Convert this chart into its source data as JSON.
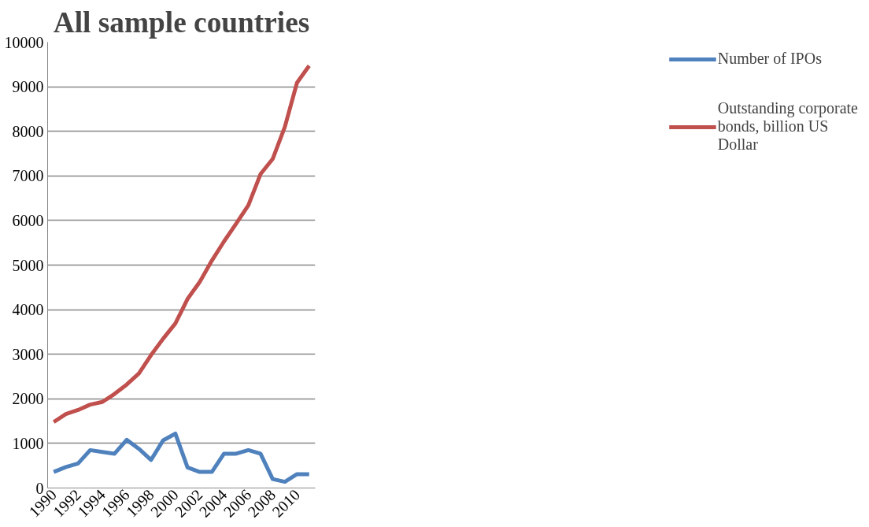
{
  "chart_data": {
    "type": "line",
    "title": "All sample countries",
    "categories": [
      "1990",
      null,
      "1992",
      null,
      "1994",
      null,
      "1996",
      null,
      "1998",
      null,
      "2000",
      null,
      "2002",
      null,
      "2004",
      null,
      "2006",
      null,
      "2008",
      null,
      "2010",
      null
    ],
    "series": [
      {
        "name": "Number of IPOs",
        "color": "#4f81bd",
        "values": [
          360,
          470,
          550,
          850,
          810,
          770,
          1080,
          880,
          630,
          1070,
          1220,
          460,
          360,
          360,
          770,
          770,
          850,
          770,
          200,
          140,
          310,
          310
        ]
      },
      {
        "name": "Outstanding corporate bonds, billion US Dollar",
        "color": "#c0504d",
        "values": [
          1480,
          1660,
          1750,
          1870,
          1930,
          2110,
          2320,
          2570,
          2980,
          3350,
          3690,
          4240,
          4620,
          5100,
          5530,
          5930,
          6340,
          7040,
          7380,
          8100,
          9090,
          9470
        ]
      }
    ],
    "ylim": [
      0,
      10000
    ],
    "yticks": [
      0,
      1000,
      2000,
      3000,
      4000,
      5000,
      6000,
      7000,
      8000,
      9000,
      10000
    ],
    "grid": "y",
    "legend": "right",
    "marker": "none",
    "line_style": "solid"
  }
}
